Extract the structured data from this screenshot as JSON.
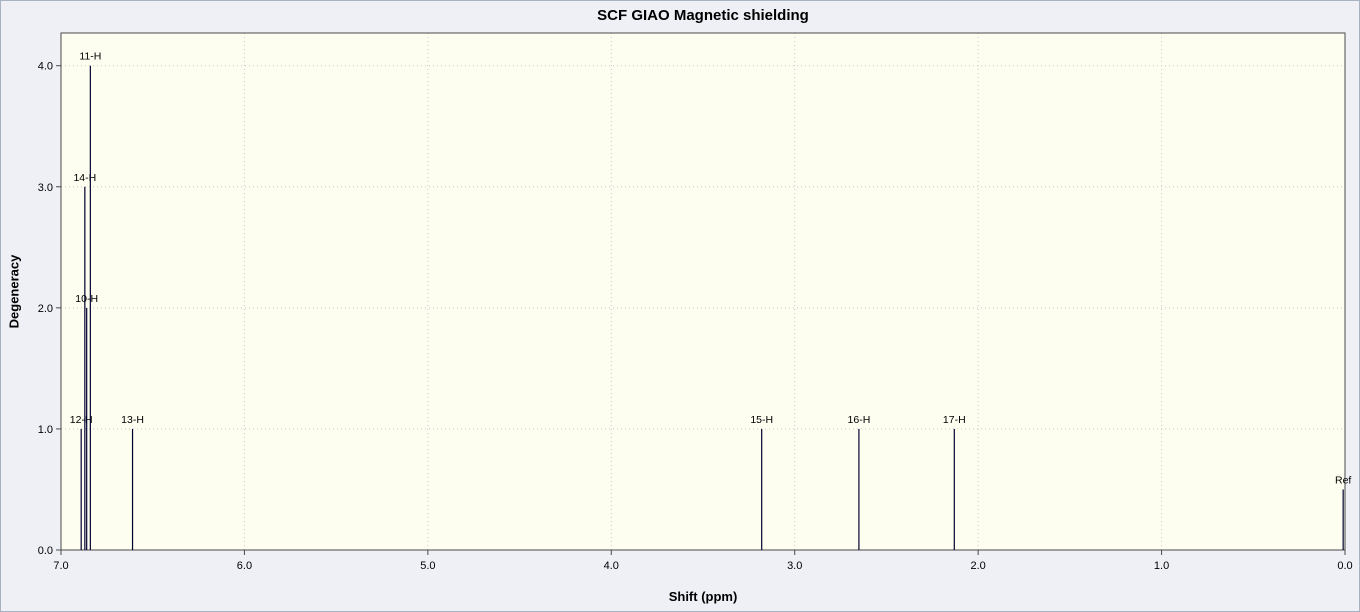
{
  "chart_data": {
    "type": "bar",
    "title": "SCF GIAO Magnetic shielding",
    "xlabel": "Shift (ppm)",
    "ylabel": "Degeneracy",
    "x_axis_reversed": true,
    "xlim": [
      7.0,
      0.0
    ],
    "ylim": [
      0.0,
      4.27
    ],
    "x_ticks": [
      7.0,
      6.0,
      5.0,
      4.0,
      3.0,
      2.0,
      1.0,
      0.0
    ],
    "y_ticks": [
      0.0,
      1.0,
      2.0,
      3.0,
      4.0
    ],
    "grid": "dotted",
    "peaks": [
      {
        "label": "12-H",
        "shift_ppm": 6.89,
        "degeneracy": 1.0
      },
      {
        "label": "14-H",
        "shift_ppm": 6.87,
        "degeneracy": 3.0
      },
      {
        "label": "10-H",
        "shift_ppm": 6.86,
        "degeneracy": 2.0
      },
      {
        "label": "11-H",
        "shift_ppm": 6.84,
        "degeneracy": 4.0
      },
      {
        "label": "13-H",
        "shift_ppm": 6.61,
        "degeneracy": 1.0
      },
      {
        "label": "15-H",
        "shift_ppm": 3.18,
        "degeneracy": 1.0
      },
      {
        "label": "16-H",
        "shift_ppm": 2.65,
        "degeneracy": 1.0
      },
      {
        "label": "17-H",
        "shift_ppm": 2.13,
        "degeneracy": 1.0
      },
      {
        "label": "Ref",
        "shift_ppm": 0.01,
        "degeneracy": 0.5
      }
    ],
    "colors": {
      "window_bg": "#eef0f6",
      "plot_bg": "#fdfdf0",
      "peak": "#000030",
      "grid": "#c9c9c9",
      "axis": "#4a4a4a",
      "text": "#000000"
    }
  }
}
